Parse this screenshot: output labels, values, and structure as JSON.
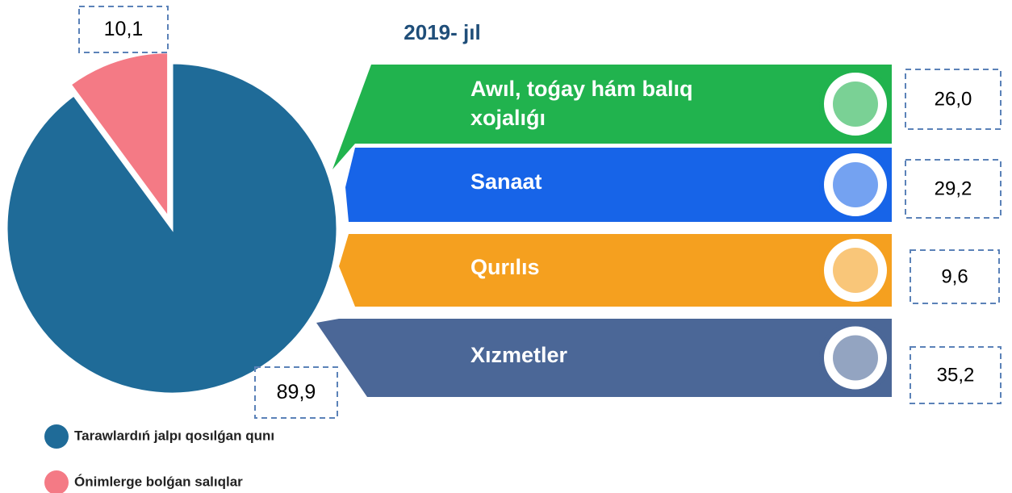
{
  "chart_data": [
    {
      "type": "pie",
      "title": "2019- jıl",
      "categories": [
        "Tarawlardıń jalpı qosılǵan qunı",
        "Ónimlerge bolǵan salıqlar"
      ],
      "values": [
        89.9,
        10.1
      ],
      "value_labels": [
        "89,9",
        "10,1"
      ],
      "colors": [
        "#1f6b98",
        "#f47a85"
      ]
    },
    {
      "type": "ribbon",
      "categories": [
        "Awıl, toǵay hám balıq xojalıǵı",
        "Sanaat",
        "Qurılıs",
        "Xızmetler"
      ],
      "values": [
        26.0,
        29.2,
        9.6,
        35.2
      ],
      "value_labels": [
        "26,0",
        "29,2",
        "9,6",
        "35,2"
      ],
      "colors": [
        "#21b34e",
        "#1764e8",
        "#f5a01f",
        "#4b6797"
      ]
    }
  ]
}
